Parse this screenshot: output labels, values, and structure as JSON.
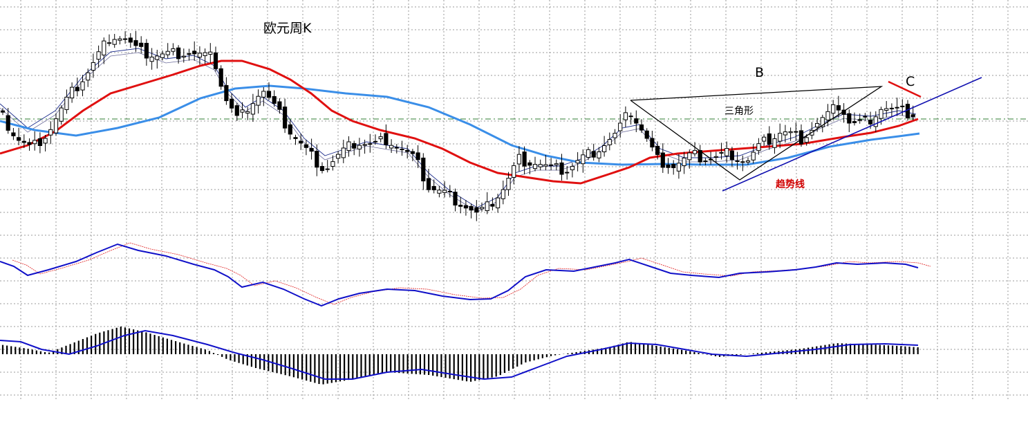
{
  "chart_data": {
    "type": "candlestick",
    "title": "欧元周K",
    "annotations": {
      "B": "B",
      "C": "C",
      "triangle": "三角形",
      "trendline": "趋势线"
    },
    "colors": {
      "grid": "#9a9a9a",
      "candle": "#000000",
      "ma_red": "#e01010",
      "ma_blue_light": "#3a8ee8",
      "ma_thin": "#1a2a8a",
      "macd_line": "#1010c8",
      "signal_line": "#e02020",
      "trendline": "#1010b0",
      "reference_line": "#2e7d32"
    },
    "grid": true,
    "panels": [
      "price",
      "macd",
      "histogram"
    ]
  }
}
